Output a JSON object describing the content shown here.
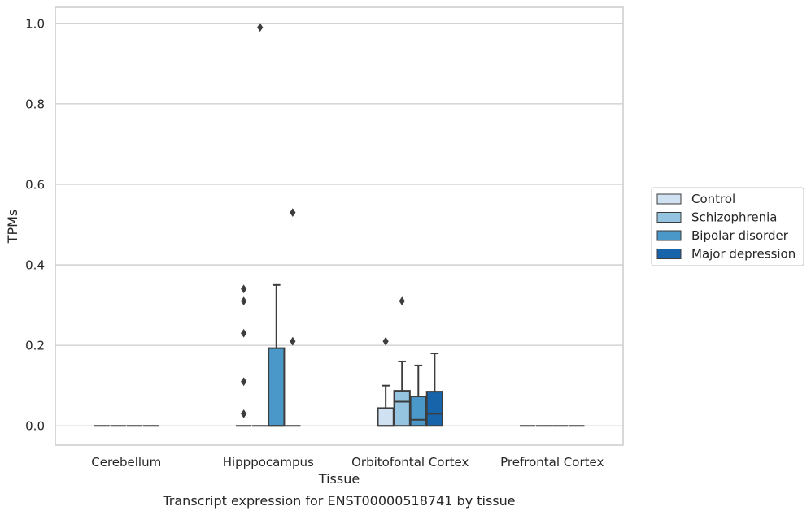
{
  "chart_data": {
    "type": "boxplot",
    "title": "",
    "caption": "Transcript expression for ENST00000518741 by tissue",
    "xlabel": "Tissue",
    "ylabel": "TPMs",
    "ylim": [
      -0.048,
      1.04
    ],
    "yticks": [
      0.0,
      0.2,
      0.4,
      0.6,
      0.8,
      1.0
    ],
    "ytick_labels": [
      "0.0",
      "0.2",
      "0.4",
      "0.6",
      "0.8",
      "1.0"
    ],
    "grid": true,
    "legend_placement": "right",
    "categories": [
      "Cerebellum",
      "Hipppocampus",
      "Orbitofontal Cortex",
      "Prefrontal Cortex"
    ],
    "series": [
      {
        "name": "Control",
        "color": "#d0e1f1",
        "boxes": [
          {
            "category": "Cerebellum",
            "q1": 0,
            "median": 0,
            "q3": 0,
            "whisker_low": 0,
            "whisker_high": 0,
            "outliers": []
          },
          {
            "category": "Hipppocampus",
            "q1": 0,
            "median": 0,
            "q3": 0,
            "whisker_low": 0,
            "whisker_high": 0,
            "outliers": [
              0.03,
              0.11,
              0.23,
              0.31,
              0.34
            ]
          },
          {
            "category": "Orbitofontal Cortex",
            "q1": 0,
            "median": 0,
            "q3": 0.044,
            "whisker_low": 0,
            "whisker_high": 0.1,
            "outliers": [
              0.21
            ]
          },
          {
            "category": "Prefrontal Cortex",
            "q1": 0,
            "median": 0,
            "q3": 0,
            "whisker_low": 0,
            "whisker_high": 0,
            "outliers": []
          }
        ]
      },
      {
        "name": "Schizophrenia",
        "color": "#94c4df",
        "boxes": [
          {
            "category": "Cerebellum",
            "q1": 0,
            "median": 0,
            "q3": 0,
            "whisker_low": 0,
            "whisker_high": 0,
            "outliers": []
          },
          {
            "category": "Hipppocampus",
            "q1": 0,
            "median": 0,
            "q3": 0,
            "whisker_low": 0,
            "whisker_high": 0,
            "outliers": [
              0.99
            ]
          },
          {
            "category": "Orbitofontal Cortex",
            "q1": 0,
            "median": 0.06,
            "q3": 0.087,
            "whisker_low": 0,
            "whisker_high": 0.16,
            "outliers": [
              0.31
            ]
          },
          {
            "category": "Prefrontal Cortex",
            "q1": 0,
            "median": 0,
            "q3": 0,
            "whisker_low": 0,
            "whisker_high": 0,
            "outliers": []
          }
        ]
      },
      {
        "name": "Bipolar disorder",
        "color": "#4a98c9",
        "boxes": [
          {
            "category": "Cerebellum",
            "q1": 0,
            "median": 0,
            "q3": 0,
            "whisker_low": 0,
            "whisker_high": 0,
            "outliers": []
          },
          {
            "category": "Hipppocampus",
            "q1": 0,
            "median": 0,
            "q3": 0.193,
            "whisker_low": 0,
            "whisker_high": 0.35,
            "outliers": []
          },
          {
            "category": "Orbitofontal Cortex",
            "q1": 0,
            "median": 0.015,
            "q3": 0.073,
            "whisker_low": 0,
            "whisker_high": 0.15,
            "outliers": []
          },
          {
            "category": "Prefrontal Cortex",
            "q1": 0,
            "median": 0,
            "q3": 0,
            "whisker_low": 0,
            "whisker_high": 0,
            "outliers": []
          }
        ]
      },
      {
        "name": "Major depression",
        "color": "#1764ab",
        "boxes": [
          {
            "category": "Cerebellum",
            "q1": 0,
            "median": 0,
            "q3": 0,
            "whisker_low": 0,
            "whisker_high": 0,
            "outliers": []
          },
          {
            "category": "Hipppocampus",
            "q1": 0,
            "median": 0,
            "q3": 0,
            "whisker_low": 0,
            "whisker_high": 0,
            "outliers": [
              0.21,
              0.53
            ]
          },
          {
            "category": "Orbitofontal Cortex",
            "q1": 0,
            "median": 0.03,
            "q3": 0.085,
            "whisker_low": 0,
            "whisker_high": 0.18,
            "outliers": []
          },
          {
            "category": "Prefrontal Cortex",
            "q1": 0,
            "median": 0,
            "q3": 0,
            "whisker_low": 0,
            "whisker_high": 0,
            "outliers": []
          }
        ]
      }
    ]
  }
}
